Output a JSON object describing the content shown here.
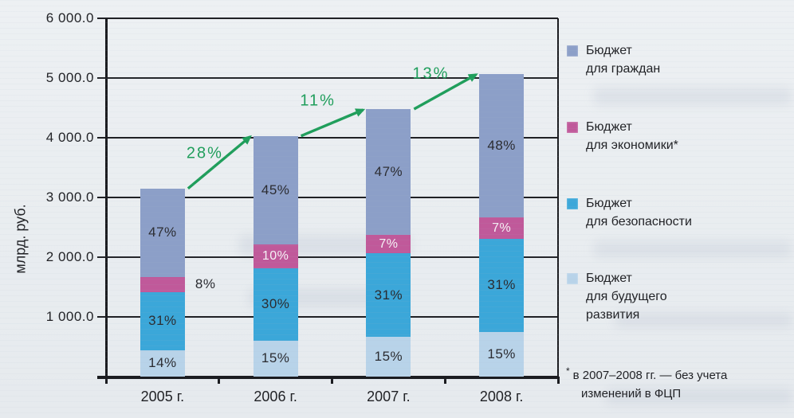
{
  "colors": {
    "paper": "#e9edf0",
    "grid": "#202125",
    "text": "#1f2024",
    "arrow_green": "#1f9e5b"
  },
  "chart_data": {
    "type": "bar",
    "subtype": "stacked-bar",
    "title": "",
    "xlabel": "",
    "ylabel": "млрд. руб.",
    "ylim": [
      0,
      6000
    ],
    "grid": true,
    "legend_position": "right",
    "yticks": [
      {
        "value": 6000,
        "label": "6 000.0"
      },
      {
        "value": 5000,
        "label": "5 000.0"
      },
      {
        "value": 4000,
        "label": "4 000.0"
      },
      {
        "value": 3000,
        "label": "3 000.0"
      },
      {
        "value": 2000,
        "label": "2 000.0"
      },
      {
        "value": 1000,
        "label": "1 000.0"
      }
    ],
    "categories": [
      "2005 г.",
      "2006 г.",
      "2007 г.",
      "2008 г."
    ],
    "totals_bln_rub": [
      3150,
      4030,
      4480,
      5070
    ],
    "series": [
      {
        "name": "Бюджет для граждан",
        "color": "#8c9fc8",
        "percents": [
          47,
          45,
          47,
          48
        ],
        "label_style": "dark",
        "outside_label_columns": []
      },
      {
        "name": "Бюджет для экономики*",
        "color": "#c0599a",
        "percents": [
          8,
          10,
          7,
          7
        ],
        "label_style": "light",
        "outside_label_columns": [
          0
        ]
      },
      {
        "name": "Бюджет для безопасности",
        "color": "#3ba7d9",
        "percents": [
          31,
          30,
          31,
          31
        ],
        "label_style": "dark",
        "outside_label_columns": []
      },
      {
        "name": "Бюджет для будущего развития",
        "color": "#b8d3e9",
        "percents": [
          14,
          15,
          15,
          15
        ],
        "label_style": "dark",
        "outside_label_columns": []
      }
    ],
    "growth_annotations": [
      {
        "from": "2005 г.",
        "to": "2006 г.",
        "label": "28%"
      },
      {
        "from": "2006 г.",
        "to": "2007 г.",
        "label": "11%"
      },
      {
        "from": "2007 г.",
        "to": "2008 г.",
        "label": "13%"
      }
    ],
    "arrow_color": "#1f9e5b"
  },
  "legend": {
    "items": [
      {
        "lines": [
          "Бюджет",
          "для граждан"
        ],
        "color": "#8c9fc8"
      },
      {
        "lines": [
          "Бюджет",
          "для экономики*"
        ],
        "color": "#c0599a"
      },
      {
        "lines": [
          "Бюджет",
          "для безопасности"
        ],
        "color": "#3ba7d9"
      },
      {
        "lines": [
          "Бюджет",
          "для будущего",
          "развития"
        ],
        "color": "#b8d3e9"
      }
    ]
  },
  "footnote": {
    "marker": "*",
    "line1": "в 2007–2008 гг. — без учета",
    "line2": "изменений в ФЦП"
  }
}
